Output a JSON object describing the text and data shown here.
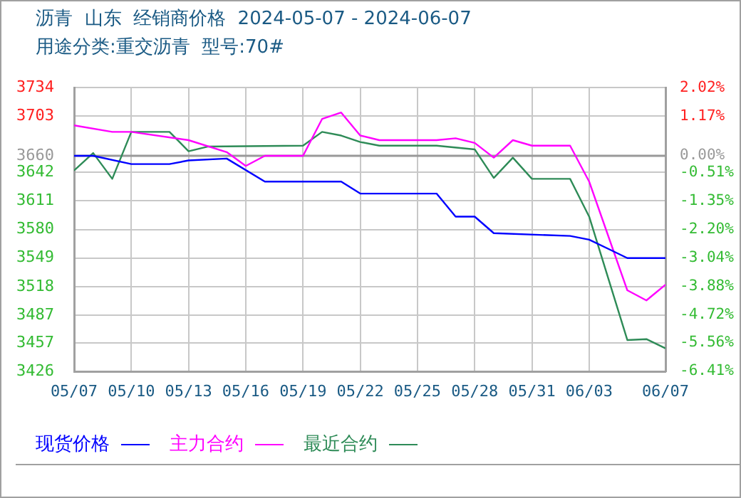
{
  "chart_data": {
    "type": "line",
    "title": "沥青  山东  经销商价格  2024-05-07 - 2024-06-07",
    "subtitle": "用途分类:重交沥青  型号:70#",
    "xlim": [
      "--05-07",
      "--06-07"
    ],
    "xticks": [
      {
        "value": "--05-07",
        "label": "05/07"
      },
      {
        "value": "--05-10",
        "label": "05/10"
      },
      {
        "value": "--05-13",
        "label": "05/13"
      },
      {
        "value": "--05-16",
        "label": "05/16"
      },
      {
        "value": "--05-19",
        "label": "05/19"
      },
      {
        "value": "--05-22",
        "label": "05/22"
      },
      {
        "value": "--05-25",
        "label": "05/25"
      },
      {
        "value": "--05-28",
        "label": "05/28"
      },
      {
        "value": "--05-31",
        "label": "05/31"
      },
      {
        "value": "--06-03",
        "label": "06/03"
      },
      {
        "value": "--06-07",
        "label": "06/07"
      }
    ],
    "ylim": [
      3426,
      3734
    ],
    "yticks": [
      3426,
      3457,
      3487,
      3518,
      3549,
      3580,
      3611,
      3642,
      3660,
      3703,
      3734
    ],
    "y2lim": [
      -6.41,
      2.02
    ],
    "y2ticks": [
      {
        "value": -6.41,
        "label": "-6.41%"
      },
      {
        "value": -5.56,
        "label": "-5.56%"
      },
      {
        "value": -4.72,
        "label": "-4.72%"
      },
      {
        "value": -3.88,
        "label": "-3.88%"
      },
      {
        "value": -3.04,
        "label": "-3.04%"
      },
      {
        "value": -2.2,
        "label": "-2.20%"
      },
      {
        "value": -1.35,
        "label": "-1.35%"
      },
      {
        "value": -0.51,
        "label": "-0.51%"
      },
      {
        "value": 0,
        "label": "0.00%"
      },
      {
        "value": 1.17,
        "label": "1.17%"
      },
      {
        "value": 2.02,
        "label": "2.02%"
      }
    ],
    "ref_lines": [
      {
        "axis": "y",
        "value": 3660,
        "color": "#999999"
      }
    ],
    "grid": true,
    "legend": "bottom",
    "marker": "none",
    "line_style": "solid",
    "series": [
      {
        "name": "现货价格",
        "color": "#0000ff",
        "x": [
          "--05-07",
          "--05-08",
          "--05-10",
          "--05-12",
          "--05-13",
          "--05-15",
          "--05-17",
          "--05-21",
          "--05-22",
          "--05-26",
          "--05-27",
          "--05-28",
          "--05-29",
          "--06-02",
          "--06-03",
          "--06-04",
          "--06-05",
          "--06-07"
        ],
        "values": [
          3660,
          3660,
          3651,
          3651,
          3655,
          3657,
          3632,
          3632,
          3619,
          3619,
          3594,
          3594,
          3576,
          3573,
          3569,
          3559,
          3549,
          3549
        ]
      },
      {
        "name": "主力合约",
        "color": "#ff00ff",
        "x": [
          "--05-07",
          "--05-09",
          "--05-10",
          "--05-13",
          "--05-15",
          "--05-16",
          "--05-17",
          "--05-19",
          "--05-20",
          "--05-21",
          "--05-22",
          "--05-23",
          "--05-26",
          "--05-27",
          "--05-28",
          "--05-29",
          "--05-30",
          "--05-31",
          "--06-02",
          "--06-03",
          "--06-05",
          "--06-06",
          "--06-07"
        ],
        "values": [
          3693,
          3686,
          3686,
          3677,
          3664,
          3649,
          3660,
          3660,
          3700,
          3707,
          3682,
          3677,
          3677,
          3679,
          3674,
          3658,
          3677,
          3671,
          3671,
          3632,
          3514,
          3503,
          3520
        ]
      },
      {
        "name": "最近合约",
        "color": "#2e8b57",
        "x": [
          "--05-07",
          "--05-08",
          "--05-09",
          "--05-10",
          "--05-12",
          "--05-13",
          "--05-14",
          "--05-19",
          "--05-20",
          "--05-21",
          "--05-22",
          "--05-23",
          "--05-26",
          "--05-28",
          "--05-29",
          "--05-30",
          "--05-31",
          "--06-02",
          "--06-03",
          "--06-05",
          "--06-06",
          "--06-07"
        ],
        "values": [
          3644,
          3663,
          3635,
          3686,
          3686,
          3665,
          3670,
          3671,
          3686,
          3682,
          3675,
          3671,
          3671,
          3667,
          3636,
          3658,
          3635,
          3635,
          3594,
          3460,
          3461,
          3451
        ]
      }
    ]
  }
}
